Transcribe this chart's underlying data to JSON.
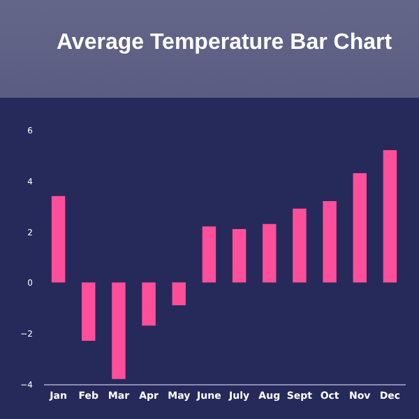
{
  "chart_data": {
    "type": "bar",
    "title": "Average Temperature Bar Chart",
    "categories": [
      "Jan",
      "Feb",
      "Mar",
      "Apr",
      "May",
      "June",
      "July",
      "Aug",
      "Sept",
      "Oct",
      "Nov",
      "Dec"
    ],
    "values": [
      3.4,
      -2.3,
      -3.8,
      -1.7,
      -0.9,
      2.2,
      2.1,
      2.3,
      2.9,
      3.2,
      4.3,
      5.2
    ],
    "color": "#ff4f9a",
    "ylim": [
      -4,
      6
    ],
    "yticks": [
      -4,
      -2,
      0,
      2,
      4,
      6
    ],
    "grid": false
  }
}
